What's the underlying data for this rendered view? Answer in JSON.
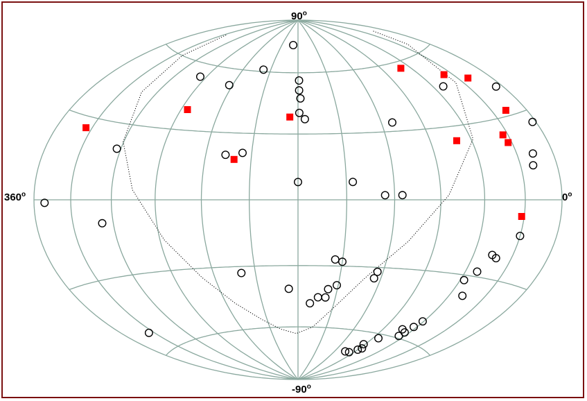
{
  "chart_data": {
    "type": "scatter",
    "projection": "hammer-aitoff",
    "title": "",
    "xlabel": "",
    "ylabel": "",
    "xlim": [
      360,
      0
    ],
    "ylim": [
      -90,
      90
    ],
    "grid": true,
    "labels": {
      "top": "90",
      "bottom": "-90",
      "left": "360",
      "right": "0",
      "degree": "o"
    },
    "colors": {
      "grid": "#8aa89e",
      "circle": "#000000",
      "square": "#ff0000",
      "frame": "#7a1010",
      "dotted": "#000000"
    },
    "dotted_curve": [
      [
        345.5,
        73
      ],
      [
        339.5,
        64
      ],
      [
        323.5,
        46
      ],
      [
        301.5,
        24
      ],
      [
        275.5,
        2
      ],
      [
        251.5,
        -18
      ],
      [
        228.5,
        -35
      ],
      [
        209.5,
        -51
      ],
      [
        195.5,
        -60
      ],
      [
        178,
        -63.5
      ],
      [
        161,
        -61
      ],
      [
        144.5,
        -55.5
      ],
      [
        127.5,
        -47
      ],
      [
        110.5,
        -34
      ],
      [
        93,
        -17
      ],
      [
        74.5,
        4
      ],
      [
        59.5,
        23
      ],
      [
        46.5,
        43
      ],
      [
        38,
        60
      ],
      [
        33,
        73
      ]
    ],
    "series": [
      {
        "marker": "circle",
        "values": [
          [
            357,
            26
          ],
          [
            354,
            40
          ],
          [
            340,
            12
          ],
          [
            343,
            16
          ],
          [
            330,
            -13
          ],
          [
            309,
            46
          ],
          [
            318,
            -22
          ],
          [
            314,
            -21
          ],
          [
            311,
            -38
          ],
          [
            303,
            -32
          ],
          [
            309,
            -28
          ],
          [
            299,
            -51
          ],
          [
            297,
            -54
          ],
          [
            295,
            -57
          ],
          [
            294,
            -59
          ],
          [
            289,
            -56
          ],
          [
            276,
            -62
          ],
          [
            273,
            -68
          ],
          [
            270,
            -69
          ],
          [
            268,
            -66
          ],
          [
            263,
            -71
          ],
          [
            256,
            -71
          ],
          [
            248,
            34
          ],
          [
            245,
            2
          ],
          [
            234,
            2
          ],
          [
            235,
            -35
          ],
          [
            236,
            -32
          ],
          [
            214,
            8
          ],
          [
            210,
            -28
          ],
          [
            209,
            -39
          ],
          [
            205,
            -27
          ],
          [
            203,
            -41
          ],
          [
            202,
            -45
          ],
          [
            196,
            -45
          ],
          [
            190,
            -48
          ],
          [
            185,
            37
          ],
          [
            182,
            47
          ],
          [
            181,
            51
          ],
          [
            181,
            56
          ],
          [
            180,
            8
          ],
          [
            181,
            40
          ],
          [
            171,
            75
          ],
          [
            173,
            -41
          ],
          [
            140,
            -33
          ],
          [
            133,
            20
          ],
          [
            144,
            21
          ],
          [
            142,
            61
          ],
          [
            117,
            52
          ],
          [
            84,
            54
          ],
          [
            57,
            20
          ],
          [
            52,
            -9
          ],
          [
            25,
            -52
          ],
          [
            9,
            -1
          ]
        ]
      },
      {
        "marker": "square",
        "values": [
          [
            342,
            32
          ],
          [
            339,
            46
          ],
          [
            322,
            50
          ],
          [
            326,
            24
          ],
          [
            328,
            -6
          ],
          [
            290,
            57
          ],
          [
            289,
            24
          ],
          [
            174,
            38
          ],
          [
            139,
            18
          ],
          [
            95,
            39
          ],
          [
            25,
            26
          ],
          [
            327,
            21
          ]
        ]
      }
    ]
  }
}
